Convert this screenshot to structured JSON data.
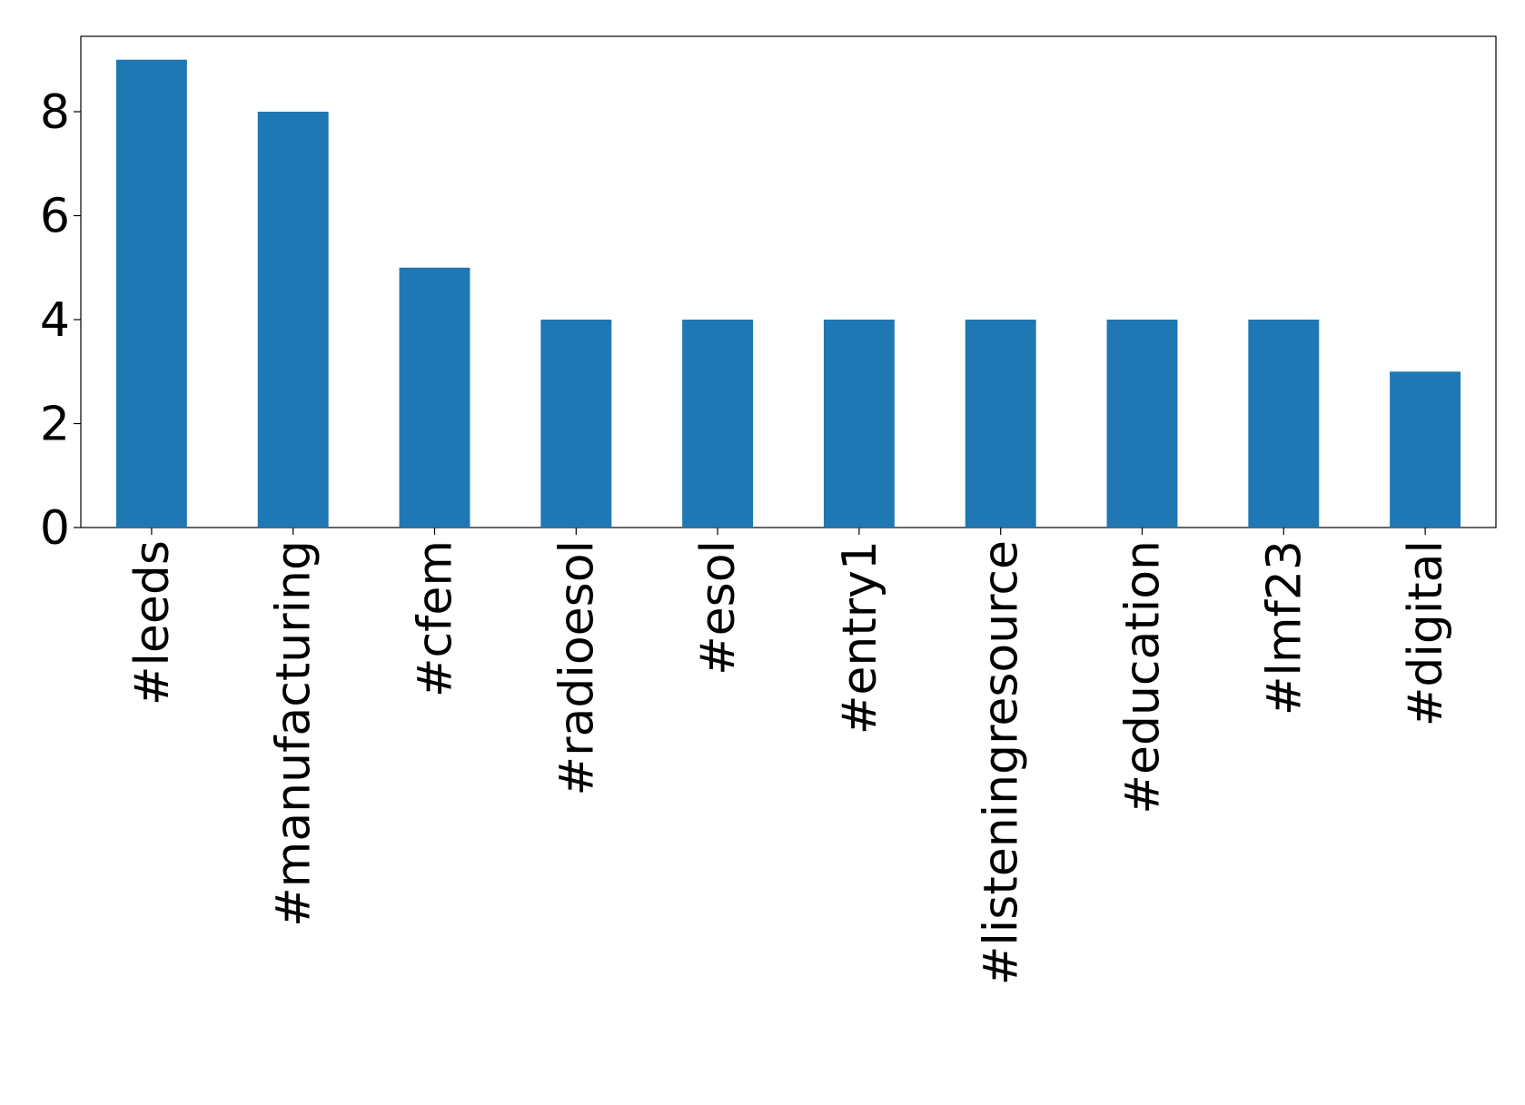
{
  "chart_data": {
    "type": "bar",
    "categories": [
      "#leeds",
      "#manufacturing",
      "#cfem",
      "#radioesol",
      "#esol",
      "#entry1",
      "#listeningresource",
      "#education",
      "#lmf23",
      "#digital"
    ],
    "values": [
      9,
      8,
      5,
      4,
      4,
      4,
      4,
      4,
      4,
      3
    ],
    "color": "#1f77b4",
    "ylim": [
      0,
      9.45
    ],
    "yticks": [
      0,
      2,
      4,
      6,
      8
    ],
    "grid": false
  }
}
